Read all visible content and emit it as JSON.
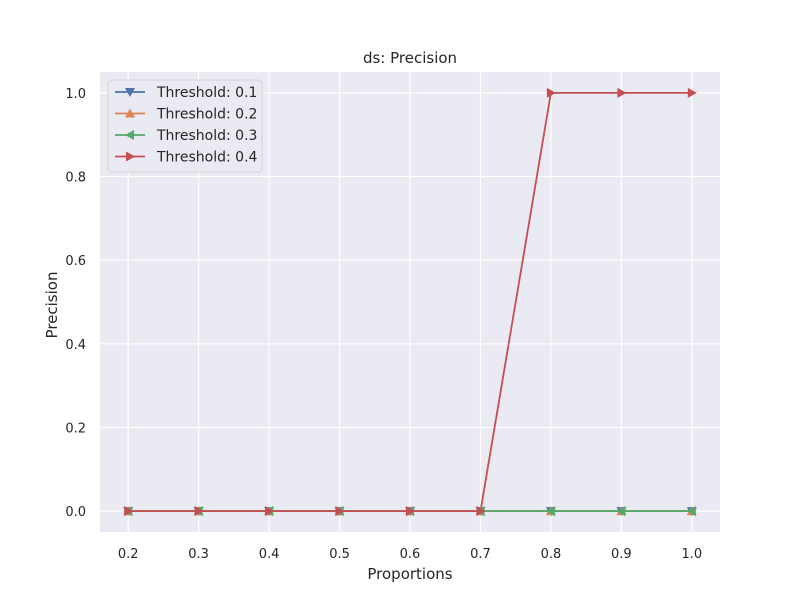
{
  "chart_data": {
    "type": "line",
    "title": "ds: Precision",
    "xlabel": "Proportions",
    "ylabel": "Precision",
    "x": [
      0.2,
      0.3,
      0.4,
      0.5,
      0.6,
      0.7,
      0.8,
      0.9,
      1.0
    ],
    "xlim": [
      0.16,
      1.04
    ],
    "ylim": [
      -0.05,
      1.05
    ],
    "xticks": [
      "0.2",
      "0.3",
      "0.4",
      "0.5",
      "0.6",
      "0.7",
      "0.8",
      "0.9",
      "1.0"
    ],
    "yticks": [
      "0.0",
      "0.2",
      "0.4",
      "0.6",
      "0.8",
      "1.0"
    ],
    "grid": true,
    "legend_position": "top-left",
    "background": "#eaeaf2",
    "series": [
      {
        "name": "Threshold: 0.1",
        "color": "#4c72b0",
        "marker": "triangle-down",
        "values": [
          0,
          0,
          0,
          0,
          0,
          0,
          0,
          0,
          0
        ]
      },
      {
        "name": "Threshold: 0.2",
        "color": "#dd8452",
        "marker": "triangle-up",
        "values": [
          0,
          0,
          0,
          0,
          0,
          0,
          0,
          0,
          0
        ]
      },
      {
        "name": "Threshold: 0.3",
        "color": "#55a868",
        "marker": "triangle-left",
        "values": [
          0,
          0,
          0,
          0,
          0,
          0,
          0,
          0,
          0
        ]
      },
      {
        "name": "Threshold: 0.4",
        "color": "#c44e52",
        "marker": "triangle-right",
        "values": [
          0,
          0,
          0,
          0,
          0,
          0,
          1,
          1,
          1
        ]
      }
    ]
  }
}
